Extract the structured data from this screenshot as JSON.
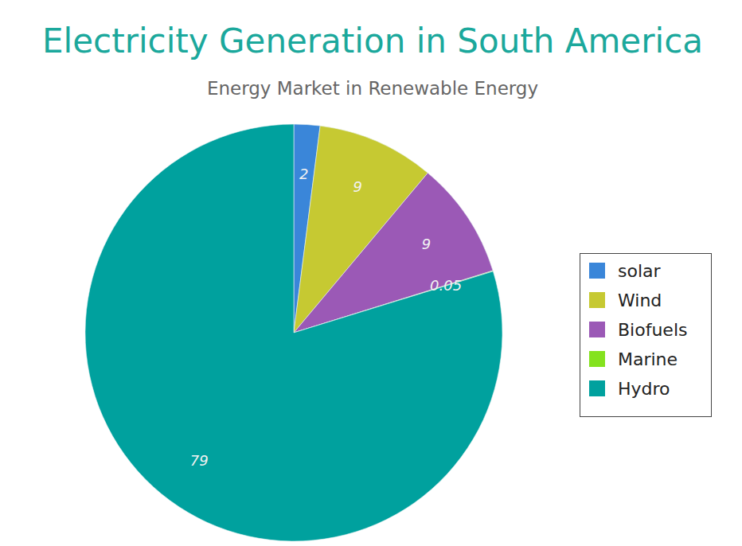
{
  "chart_data": {
    "type": "pie",
    "title": "Electricity Generation in South America",
    "subtitle": "Energy Market in Renewable Energy",
    "categories": [
      "solar",
      "Wind",
      "Biofuels",
      "Marine",
      "Hydro"
    ],
    "values": [
      2,
      9,
      9,
      0.05,
      79
    ],
    "colors": [
      "#3a86d9",
      "#c6c932",
      "#9b59b6",
      "#84e21e",
      "#00a19e"
    ],
    "legend": "right",
    "data_labels": true
  }
}
